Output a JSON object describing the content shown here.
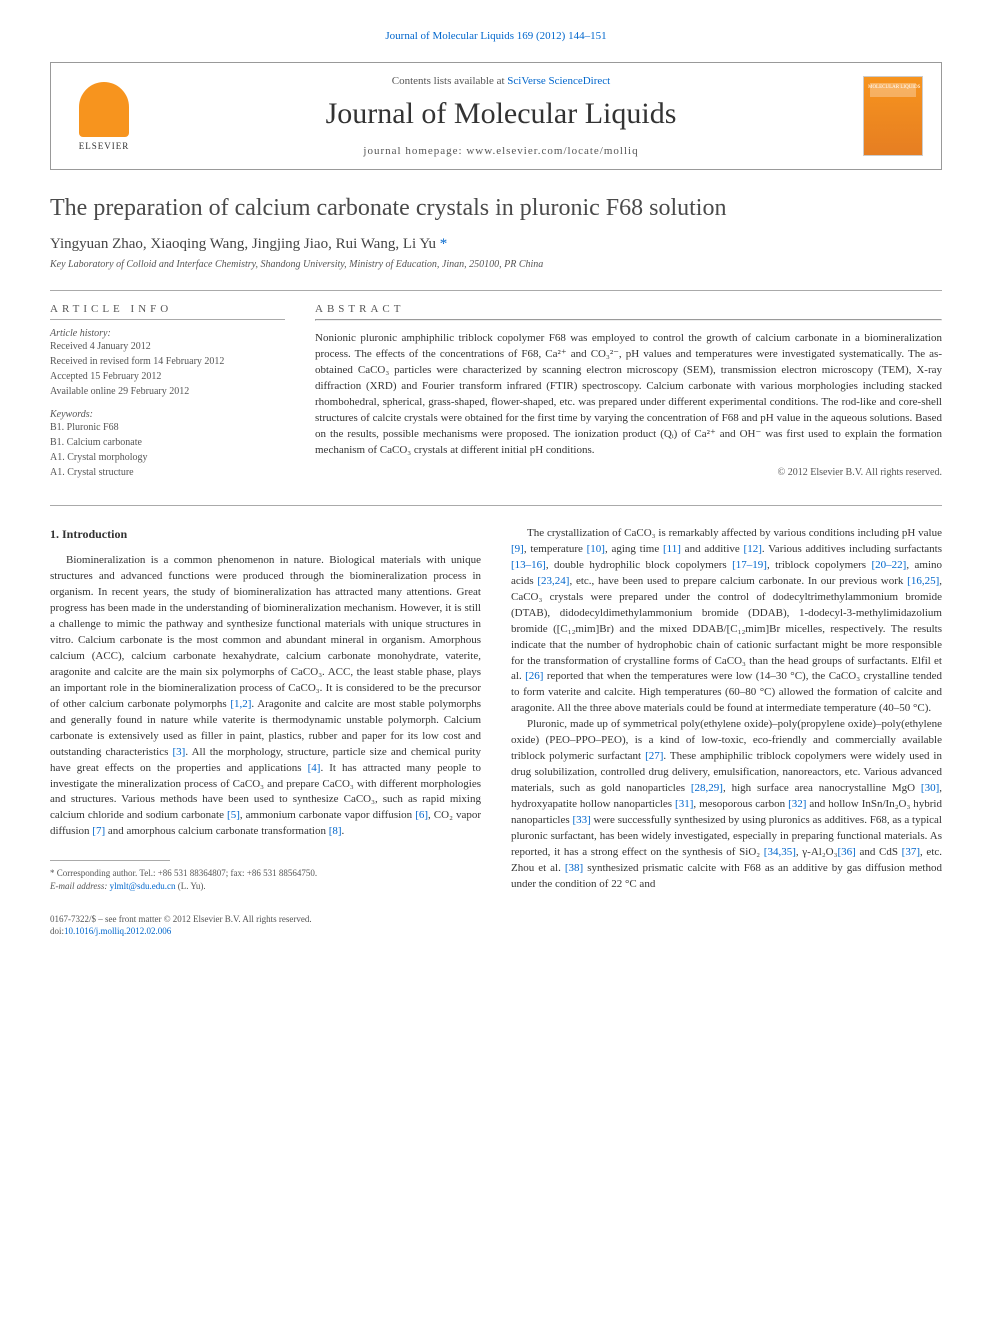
{
  "journal_header_link": "Journal of Molecular Liquids 169 (2012) 144–151",
  "header": {
    "contents_prefix": "Contents lists available at ",
    "contents_link": "SciVerse ScienceDirect",
    "journal_name": "Journal of Molecular Liquids",
    "homepage": "journal homepage: www.elsevier.com/locate/molliq",
    "elsevier_label": "ELSEVIER",
    "cover_label": "MOLECULAR LIQUIDS"
  },
  "title": "The preparation of calcium carbonate crystals in pluronic F68 solution",
  "authors": "Yingyuan Zhao, Xiaoqing Wang, Jingjing Jiao, Rui Wang, Li Yu ",
  "corr_mark": "*",
  "affiliation": "Key Laboratory of Colloid and Interface Chemistry, Shandong University, Ministry of Education, Jinan, 250100, PR China",
  "article_info": {
    "heading": "ARTICLE INFO",
    "history_label": "Article history:",
    "history": [
      "Received 4 January 2012",
      "Received in revised form 14 February 2012",
      "Accepted 15 February 2012",
      "Available online 29 February 2012"
    ],
    "keywords_label": "Keywords:",
    "keywords": [
      "B1. Pluronic F68",
      "B1. Calcium carbonate",
      "A1. Crystal morphology",
      "A1. Crystal structure"
    ]
  },
  "abstract": {
    "heading": "ABSTRACT",
    "text": "Nonionic pluronic amphiphilic triblock copolymer F68 was employed to control the growth of calcium carbonate in a biomineralization process. The effects of the concentrations of F68, Ca²⁺ and CO₃²⁻, pH values and temperatures were investigated systematically. The as-obtained CaCO₃ particles were characterized by scanning electron microscopy (SEM), transmission electron microscopy (TEM), X-ray diffraction (XRD) and Fourier transform infrared (FTIR) spectroscopy. Calcium carbonate with various morphologies including stacked rhombohedral, spherical, grass-shaped, flower-shaped, etc. was prepared under different experimental conditions. The rod-like and core-shell structures of calcite crystals were obtained for the first time by varying the concentration of F68 and pH value in the aqueous solutions. Based on the results, possible mechanisms were proposed. The ionization product (Qᵢ) of Ca²⁺ and OH⁻ was first used to explain the formation mechanism of CaCO₃ crystals at different initial pH conditions.",
    "copyright": "© 2012 Elsevier B.V. All rights reserved."
  },
  "intro_heading": "1. Introduction",
  "col1": {
    "p1a": "Biomineralization is a common phenomenon in nature. Biological materials with unique structures and advanced functions were produced through the biomineralization process in organism. In recent years, the study of biomineralization has attracted many attentions. Great progress has been made in the understanding of biomineralization mechanism. However, it is still a challenge to mimic the pathway and synthesize functional materials with unique structures in vitro. Calcium carbonate is the most common and abundant mineral in organism. Amorphous calcium (ACC), calcium carbonate hexahydrate, calcium carbonate monohydrate, vaterite, aragonite and calcite are the main six polymorphs of CaCO₃. ACC, the least stable phase, plays an important role in the biomineralization process of CaCO₃. It is considered to be the precursor of other calcium carbonate polymorphs ",
    "r1": "[1,2]",
    "p1b": ". Aragonite and calcite are most stable polymorphs and generally found in nature while vaterite is thermodynamic unstable polymorph. Calcium carbonate is extensively used as filler in paint, plastics, rubber and paper for its low cost and outstanding characteristics ",
    "r2": "[3]",
    "p1c": ". All the morphology, structure, particle size and chemical purity have great effects on the properties and applications ",
    "r3": "[4]",
    "p1d": ". It has attracted many people to investigate the mineralization process of CaCO₃ and prepare CaCO₃ with different morphologies and structures. Various methods have been used to synthesize CaCO₃, such as rapid mixing calcium chloride and sodium carbonate ",
    "r4": "[5]",
    "p1e": ", ammonium carbonate vapor diffusion ",
    "r5": "[6]",
    "p1f": ", CO₂ vapor diffusion ",
    "r6": "[7]",
    "p1g": " and amorphous calcium carbonate transformation ",
    "r7": "[8]",
    "p1h": "."
  },
  "col2": {
    "p1a": "The crystallization of CaCO₃ is remarkably affected by various conditions including pH value ",
    "r1": "[9]",
    "p1b": ", temperature ",
    "r2": "[10]",
    "p1c": ", aging time ",
    "r3": "[11]",
    "p1d": " and additive ",
    "r4": "[12]",
    "p1e": ". Various additives including surfactants ",
    "r5": "[13–16]",
    "p1f": ", double hydrophilic block copolymers ",
    "r6": "[17–19]",
    "p1g": ", triblock copolymers ",
    "r7": "[20–22]",
    "p1h": ", amino acids ",
    "r8": "[23,24]",
    "p1i": ", etc., have been used to prepare calcium carbonate. In our previous work ",
    "r9": "[16,25]",
    "p1j": ", CaCO₃ crystals were prepared under the control of dodecyltrimethylammonium bromide (DTAB), didodecyldimethylammonium bromide (DDAB), 1-dodecyl-3-methylimidazolium bromide ([C₁₂mim]Br) and the mixed DDAB/[C₁₂mim]Br micelles, respectively. The results indicate that the number of hydrophobic chain of cationic surfactant might be more responsible for the transformation of crystalline forms of CaCO₃ than the head groups of surfactants. Elfil et al. ",
    "r10": "[26]",
    "p1k": " reported that when the temperatures were low (14–30 °C), the CaCO₃ crystalline tended to form vaterite and calcite. High temperatures (60–80 °C) allowed the formation of calcite and aragonite. All the three above materials could be found at intermediate temperature (40–50 °C).",
    "p2a": "Pluronic, made up of symmetrical poly(ethylene oxide)–poly(propylene oxide)–poly(ethylene oxide) (PEO–PPO–PEO), is a kind of low-toxic, eco-friendly and commercially available triblock polymeric surfactant ",
    "r11": "[27]",
    "p2b": ". These amphiphilic triblock copolymers were widely used in drug solubilization, controlled drug delivery, emulsification, nanoreactors, etc. Various advanced materials, such as gold nanoparticles ",
    "r12": "[28,29]",
    "p2c": ", high surface area nanocrystalline MgO ",
    "r13": "[30]",
    "p2d": ", hydroxyapatite hollow nanoparticles ",
    "r14": "[31]",
    "p2e": ", mesoporous carbon ",
    "r15": "[32]",
    "p2f": " and hollow InSn/In₂O₃ hybrid nanoparticles ",
    "r16": "[33]",
    "p2g": " were successfully synthesized by using pluronics as additives. F68, as a typical pluronic surfactant, has been widely investigated, especially in preparing functional materials. As reported, it has a strong effect on the synthesis of SiO₂ ",
    "r17": "[34,35]",
    "p2h": ", γ-Al₂O₃",
    "r18": "[36]",
    "p2i": " and CdS ",
    "r19": "[37]",
    "p2j": ", etc. Zhou et al. ",
    "r20": "[38]",
    "p2k": " synthesized prismatic calcite with F68 as an additive by gas diffusion method under the condition of 22 °C and"
  },
  "footnote": {
    "corr": "* Corresponding author. Tel.: +86 531 88364807; fax: +86 531 88564750.",
    "email_label": "E-mail address: ",
    "email": "ylmlt@sdu.edu.cn",
    "email_suffix": " (L. Yu)."
  },
  "bottom": {
    "issn": "0167-7322/$ – see front matter © 2012 Elsevier B.V. All rights reserved.",
    "doi_label": "doi:",
    "doi": "10.1016/j.molliq.2012.02.006"
  }
}
